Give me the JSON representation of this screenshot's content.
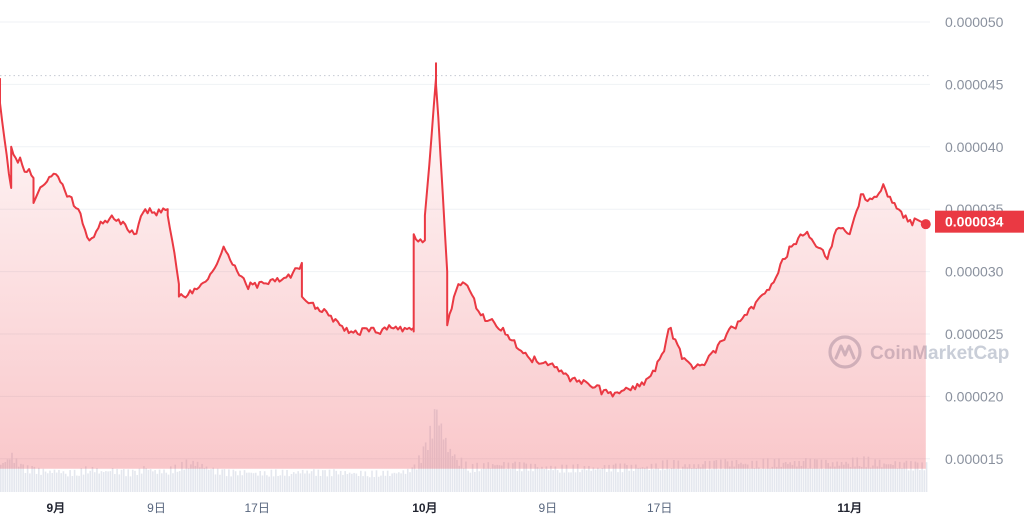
{
  "chart_data": {
    "type": "area",
    "y_axis": {
      "ticks": [
        "0.000050",
        "0.000045",
        "0.000040",
        "0.000035",
        "0.000030",
        "0.000025",
        "0.000020",
        "0.000015"
      ],
      "tick_values": [
        5e-05,
        4.5e-05,
        4e-05,
        3.5e-05,
        3e-05,
        2.5e-05,
        2e-05,
        1.5e-05
      ],
      "ylim": [
        1.25e-05,
        5.08e-05
      ],
      "position": "right"
    },
    "x_axis": {
      "ticks": [
        {
          "label": "9月",
          "date": "2023-08-19",
          "bold": true
        },
        {
          "label": "9日",
          "date": "2023-08-28",
          "bold": false
        },
        {
          "label": "17日",
          "date": "2023-09-06",
          "bold": false
        },
        {
          "label": "10月",
          "date": "2023-09-21",
          "bold": true
        },
        {
          "label": "9日",
          "date": "2023-10-02",
          "bold": false
        },
        {
          "label": "17日",
          "date": "2023-10-12",
          "bold": false
        },
        {
          "label": "11月",
          "date": "2023-10-29",
          "bold": true
        }
      ],
      "range": [
        "2023-08-14",
        "2023-11-04"
      ]
    },
    "current_price_label": "0.000034",
    "reference_line": {
      "value": 4.57e-05,
      "style": "dotted"
    },
    "watermark": "CoinMarketCap",
    "colors": {
      "line_down": "#ea3943",
      "line_up": "#16c784",
      "volume": "#e4e7ee",
      "badge": "#ea3943",
      "grid": "#eff2f5"
    },
    "series": [
      {
        "values": [
          [
            "2023-08-14",
            4.55e-05
          ],
          [
            "2023-08-14",
            4.35e-05
          ],
          [
            "2023-08-15",
            3.67e-05
          ],
          [
            "2023-08-15",
            4e-05
          ],
          [
            "2023-08-16",
            3.85e-05
          ],
          [
            "2023-08-17",
            3.75e-05
          ],
          [
            "2023-08-17",
            3.55e-05
          ],
          [
            "2023-08-18",
            3.7e-05
          ],
          [
            "2023-08-19",
            3.78e-05
          ],
          [
            "2023-08-20",
            3.6e-05
          ],
          [
            "2023-08-21",
            3.5e-05
          ],
          [
            "2023-08-22",
            3.25e-05
          ],
          [
            "2023-08-23",
            3.4e-05
          ],
          [
            "2023-08-24",
            3.45e-05
          ],
          [
            "2023-08-25",
            3.4e-05
          ],
          [
            "2023-08-26",
            3.3e-05
          ],
          [
            "2023-08-27",
            3.5e-05
          ],
          [
            "2023-08-28",
            3.45e-05
          ],
          [
            "2023-08-29",
            3.5e-05
          ],
          [
            "2023-08-29",
            3.45e-05
          ],
          [
            "2023-08-30",
            2.9e-05
          ],
          [
            "2023-08-30",
            2.8e-05
          ],
          [
            "2023-08-31",
            2.85e-05
          ],
          [
            "2023-09-01",
            2.9e-05
          ],
          [
            "2023-09-02",
            3e-05
          ],
          [
            "2023-09-03",
            3.2e-05
          ],
          [
            "2023-09-04",
            3.05e-05
          ],
          [
            "2023-09-05",
            2.9e-05
          ],
          [
            "2023-09-06",
            2.87e-05
          ],
          [
            "2023-09-07",
            2.9e-05
          ],
          [
            "2023-09-08",
            2.92e-05
          ],
          [
            "2023-09-09",
            2.95e-05
          ],
          [
            "2023-09-10",
            3.07e-05
          ],
          [
            "2023-09-10",
            2.8e-05
          ],
          [
            "2023-09-11",
            2.75e-05
          ],
          [
            "2023-09-12",
            2.7e-05
          ],
          [
            "2023-09-13",
            2.62e-05
          ],
          [
            "2023-09-14",
            2.55e-05
          ],
          [
            "2023-09-15",
            2.5e-05
          ],
          [
            "2023-09-16",
            2.52e-05
          ],
          [
            "2023-09-17",
            2.5e-05
          ],
          [
            "2023-09-18",
            2.55e-05
          ],
          [
            "2023-09-19",
            2.52e-05
          ],
          [
            "2023-09-20",
            2.55e-05
          ],
          [
            "2023-09-20",
            2.52e-05
          ],
          [
            "2023-09-20",
            3.3e-05
          ],
          [
            "2023-09-21",
            3.25e-05
          ],
          [
            "2023-09-21",
            3.45e-05
          ],
          [
            "2023-09-22",
            4.55e-05
          ],
          [
            "2023-09-22",
            4.67e-05
          ],
          [
            "2023-09-22",
            4.5e-05
          ],
          [
            "2023-09-23",
            3e-05
          ],
          [
            "2023-09-23",
            2.57e-05
          ],
          [
            "2023-09-24",
            2.9e-05
          ],
          [
            "2023-09-25",
            2.85e-05
          ],
          [
            "2023-09-26",
            2.65e-05
          ],
          [
            "2023-09-27",
            2.62e-05
          ],
          [
            "2023-09-28",
            2.55e-05
          ],
          [
            "2023-09-29",
            2.45e-05
          ],
          [
            "2023-09-30",
            2.35e-05
          ],
          [
            "2023-10-01",
            2.28e-05
          ],
          [
            "2023-10-02",
            2.25e-05
          ],
          [
            "2023-10-03",
            2.2e-05
          ],
          [
            "2023-10-04",
            2.12e-05
          ],
          [
            "2023-10-05",
            2.1e-05
          ],
          [
            "2023-10-06",
            2.07e-05
          ],
          [
            "2023-10-07",
            2.05e-05
          ],
          [
            "2023-10-08",
            2.03e-05
          ],
          [
            "2023-10-09",
            2.07e-05
          ],
          [
            "2023-10-10",
            2.1e-05
          ],
          [
            "2023-10-11",
            2.15e-05
          ],
          [
            "2023-10-12",
            2.3e-05
          ],
          [
            "2023-10-13",
            2.55e-05
          ],
          [
            "2023-10-14",
            2.3e-05
          ],
          [
            "2023-10-15",
            2.22e-05
          ],
          [
            "2023-10-16",
            2.25e-05
          ],
          [
            "2023-10-17",
            2.35e-05
          ],
          [
            "2023-10-18",
            2.5e-05
          ],
          [
            "2023-10-19",
            2.6e-05
          ],
          [
            "2023-10-20",
            2.7e-05
          ],
          [
            "2023-10-21",
            2.8e-05
          ],
          [
            "2023-10-22",
            2.9e-05
          ],
          [
            "2023-10-23",
            3.1e-05
          ],
          [
            "2023-10-24",
            3.22e-05
          ],
          [
            "2023-10-25",
            3.3e-05
          ],
          [
            "2023-10-26",
            3.2e-05
          ],
          [
            "2023-10-27",
            3.1e-05
          ],
          [
            "2023-10-28",
            3.35e-05
          ],
          [
            "2023-10-29",
            3.3e-05
          ],
          [
            "2023-10-30",
            3.62e-05
          ],
          [
            "2023-10-31",
            3.58e-05
          ],
          [
            "2023-11-01",
            3.7e-05
          ],
          [
            "2023-11-02",
            3.55e-05
          ],
          [
            "2023-11-03",
            3.45e-05
          ],
          [
            "2023-11-04",
            3.38e-05
          ]
        ]
      }
    ],
    "volume": [
      [
        "2023-08-14",
        0.35
      ],
      [
        "2023-08-15",
        0.45
      ],
      [
        "2023-08-16",
        0.3
      ],
      [
        "2023-08-17",
        0.28
      ],
      [
        "2023-08-18",
        0.25
      ],
      [
        "2023-08-19",
        0.27
      ],
      [
        "2023-08-20",
        0.24
      ],
      [
        "2023-08-21",
        0.25
      ],
      [
        "2023-08-22",
        0.3
      ],
      [
        "2023-08-23",
        0.26
      ],
      [
        "2023-08-24",
        0.27
      ],
      [
        "2023-08-25",
        0.25
      ],
      [
        "2023-08-26",
        0.24
      ],
      [
        "2023-08-27",
        0.3
      ],
      [
        "2023-08-28",
        0.26
      ],
      [
        "2023-08-29",
        0.27
      ],
      [
        "2023-08-30",
        0.32
      ],
      [
        "2023-08-31",
        0.38
      ],
      [
        "2023-09-01",
        0.34
      ],
      [
        "2023-09-02",
        0.27
      ],
      [
        "2023-09-03",
        0.25
      ],
      [
        "2023-09-04",
        0.24
      ],
      [
        "2023-09-05",
        0.25
      ],
      [
        "2023-09-06",
        0.24
      ],
      [
        "2023-09-07",
        0.24
      ],
      [
        "2023-09-08",
        0.25
      ],
      [
        "2023-09-09",
        0.24
      ],
      [
        "2023-09-10",
        0.26
      ],
      [
        "2023-09-11",
        0.25
      ],
      [
        "2023-09-12",
        0.24
      ],
      [
        "2023-09-13",
        0.25
      ],
      [
        "2023-09-14",
        0.24
      ],
      [
        "2023-09-15",
        0.24
      ],
      [
        "2023-09-16",
        0.23
      ],
      [
        "2023-09-17",
        0.24
      ],
      [
        "2023-09-18",
        0.24
      ],
      [
        "2023-09-19",
        0.25
      ],
      [
        "2023-09-20",
        0.3
      ],
      [
        "2023-09-21",
        0.55
      ],
      [
        "2023-09-22",
        1.0
      ],
      [
        "2023-09-23",
        0.55
      ],
      [
        "2023-09-24",
        0.4
      ],
      [
        "2023-09-25",
        0.3
      ],
      [
        "2023-09-26",
        0.33
      ],
      [
        "2023-09-27",
        0.35
      ],
      [
        "2023-09-28",
        0.34
      ],
      [
        "2023-09-29",
        0.33
      ],
      [
        "2023-09-30",
        0.32
      ],
      [
        "2023-10-01",
        0.31
      ],
      [
        "2023-10-02",
        0.31
      ],
      [
        "2023-10-03",
        0.3
      ],
      [
        "2023-10-04",
        0.3
      ],
      [
        "2023-10-05",
        0.31
      ],
      [
        "2023-10-06",
        0.3
      ],
      [
        "2023-10-07",
        0.3
      ],
      [
        "2023-10-08",
        0.31
      ],
      [
        "2023-10-09",
        0.31
      ],
      [
        "2023-10-10",
        0.31
      ],
      [
        "2023-10-11",
        0.32
      ],
      [
        "2023-10-12",
        0.34
      ],
      [
        "2023-10-13",
        0.36
      ],
      [
        "2023-10-14",
        0.34
      ],
      [
        "2023-10-15",
        0.33
      ],
      [
        "2023-10-16",
        0.34
      ],
      [
        "2023-10-17",
        0.35
      ],
      [
        "2023-10-18",
        0.36
      ],
      [
        "2023-10-19",
        0.37
      ],
      [
        "2023-10-20",
        0.35
      ],
      [
        "2023-10-21",
        0.36
      ],
      [
        "2023-10-22",
        0.37
      ],
      [
        "2023-10-23",
        0.38
      ],
      [
        "2023-10-24",
        0.36
      ],
      [
        "2023-10-25",
        0.37
      ],
      [
        "2023-10-26",
        0.36
      ],
      [
        "2023-10-27",
        0.35
      ],
      [
        "2023-10-28",
        0.36
      ],
      [
        "2023-10-29",
        0.38
      ],
      [
        "2023-10-30",
        0.39
      ],
      [
        "2023-10-31",
        0.38
      ],
      [
        "2023-11-01",
        0.36
      ],
      [
        "2023-11-02",
        0.35
      ],
      [
        "2023-11-03",
        0.34
      ],
      [
        "2023-11-04",
        0.33
      ]
    ]
  }
}
